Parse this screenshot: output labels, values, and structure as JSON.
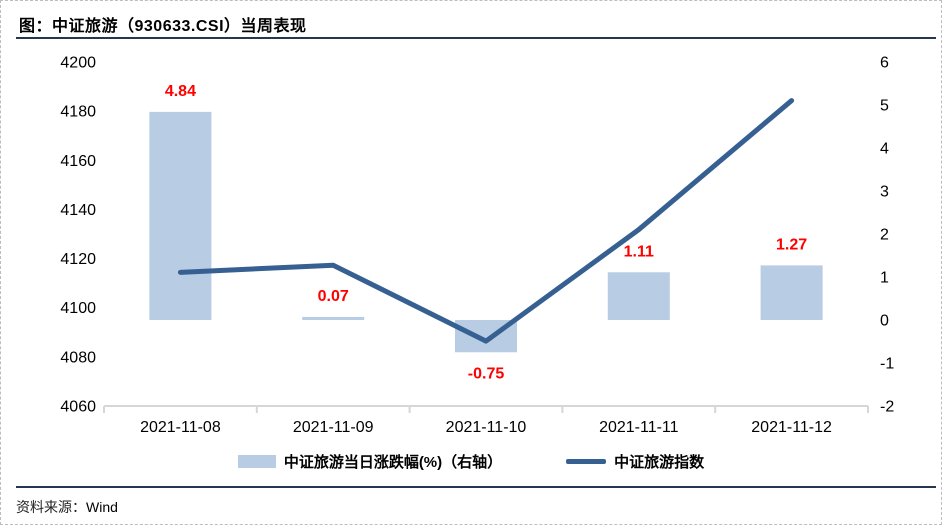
{
  "header": {
    "title": "图：中证旅游（930633.CSI）当周表现"
  },
  "chart_data": {
    "type": "combo",
    "title": "中证旅游（930633.CSI）当周表现",
    "categories": [
      "2021-11-08",
      "2021-11-09",
      "2021-11-10",
      "2021-11-11",
      "2021-11-12"
    ],
    "series": [
      {
        "name": "中证旅游当日涨跌幅(%)（右轴）",
        "type": "bar",
        "axis": "right",
        "color": "#b8cce4",
        "values": [
          4.84,
          0.07,
          -0.75,
          1.11,
          1.27
        ],
        "labels": [
          "4.84",
          "0.07",
          "-0.75",
          "1.11",
          "1.27"
        ],
        "label_color": "#ff0000"
      },
      {
        "name": "中证旅游指数",
        "type": "line",
        "axis": "left",
        "color": "#376092",
        "values": [
          4114.4,
          4117.3,
          4086.4,
          4131.8,
          4184.3
        ]
      }
    ],
    "left_axis": {
      "min": 4060,
      "max": 4200,
      "step": 20,
      "ticks": [
        "4200",
        "4180",
        "4160",
        "4140",
        "4120",
        "4100",
        "4080",
        "4060"
      ]
    },
    "right_axis": {
      "min": -2,
      "max": 6,
      "step": 1,
      "ticks": [
        "6",
        "5",
        "4",
        "3",
        "2",
        "1",
        "0",
        "-1",
        "-2"
      ]
    },
    "grid": false,
    "legend_position": "bottom",
    "axis_line_color": "#d6d6d6",
    "tick_text_color": "#000000"
  },
  "legend": {
    "items": [
      {
        "label": "中证旅游当日涨跌幅(%)（右轴）",
        "swatch": "bar"
      },
      {
        "label": "中证旅游指数",
        "swatch": "line"
      }
    ]
  },
  "footer": {
    "source_label": "资料来源：",
    "source_value": "Wind"
  }
}
